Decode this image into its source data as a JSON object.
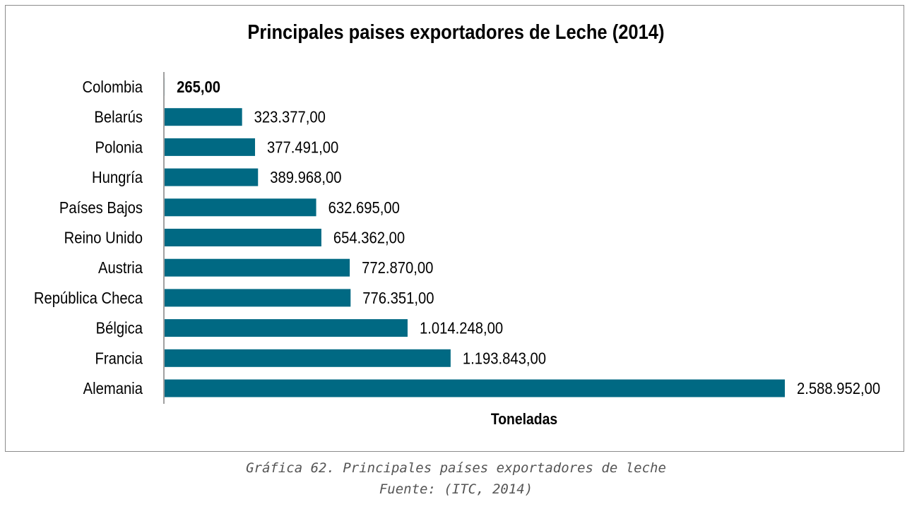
{
  "chart_data": {
    "type": "bar",
    "orientation": "horizontal",
    "title": "Principales paises exportadores de Leche (2014)",
    "xlabel": "Toneladas",
    "ylabel": "",
    "categories": [
      "Colombia",
      "Belarús",
      "Polonia",
      "Hungría",
      "Países Bajos",
      "Reino Unido",
      "Austria",
      "República Checa",
      "Bélgica",
      "Francia",
      "Alemania"
    ],
    "values": [
      265,
      323377,
      377491,
      389968,
      632695,
      654362,
      772870,
      776351,
      1014248,
      1193843,
      2588952
    ],
    "value_labels": [
      "265,00",
      "323.377,00",
      "377.491,00",
      "389.968,00",
      "632.695,00",
      "654.362,00",
      "772.870,00",
      "776.351,00",
      "1.014.248,00",
      "1.193.843,00",
      "2.588.952,00"
    ],
    "highlighted_category": "Colombia",
    "bar_color": "#006983",
    "grid": false,
    "legend": false
  },
  "caption": {
    "line1": "Gráfica 62. Principales países exportadores de leche",
    "line2": "Fuente: (ITC, 2014)"
  }
}
